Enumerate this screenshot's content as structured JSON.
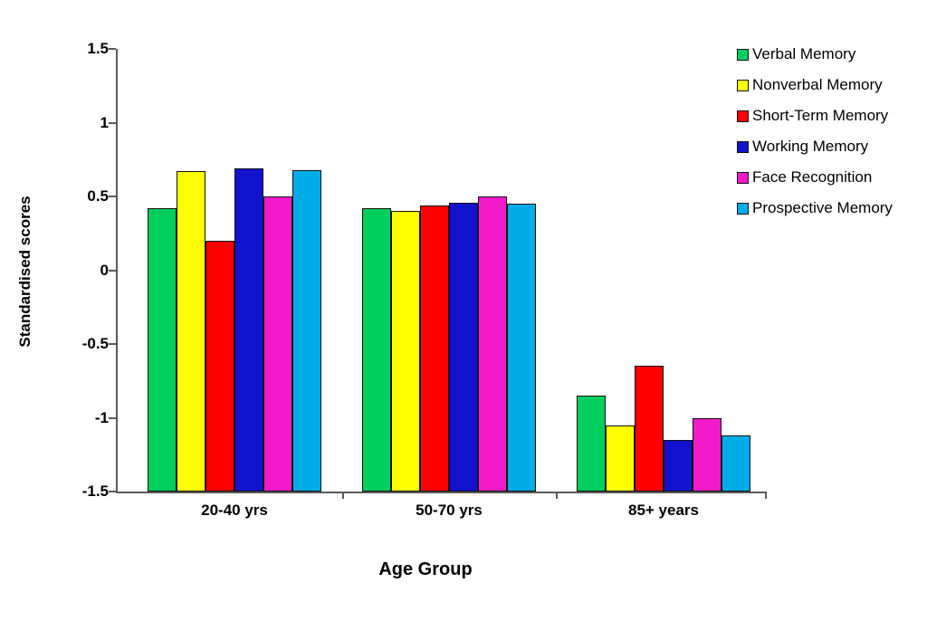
{
  "chart_data": {
    "type": "bar",
    "title": "",
    "xlabel": "Age Group",
    "ylabel": "Standardised scores",
    "categories": [
      "20-40 yrs",
      "50-70 yrs",
      "85+ years"
    ],
    "series": [
      {
        "name": "Verbal Memory",
        "color": "#00CE5D",
        "values": [
          0.42,
          0.42,
          -0.85
        ]
      },
      {
        "name": "Nonverbal Memory",
        "color": "#FFFF00",
        "values": [
          0.67,
          0.4,
          -1.05
        ]
      },
      {
        "name": "Short-Term Memory",
        "color": "#FF0000",
        "values": [
          0.2,
          0.44,
          -0.65
        ]
      },
      {
        "name": "Working Memory",
        "color": "#1313CE",
        "values": [
          0.69,
          0.46,
          -1.15
        ]
      },
      {
        "name": "Face Recognition",
        "color": "#F31BC9",
        "values": [
          0.5,
          0.5,
          -1.0
        ]
      },
      {
        "name": "Prospective Memory",
        "color": "#00ACE8",
        "values": [
          0.68,
          0.45,
          -1.12
        ]
      }
    ],
    "ylim": [
      -1.5,
      1.5
    ],
    "yticks": [
      1.5,
      1,
      0.5,
      0,
      -0.5,
      -1,
      -1.5
    ],
    "ytick_labels": [
      "1.5",
      "1",
      "0.5",
      "0",
      "-0.5",
      "-1",
      "-1.5"
    ],
    "bar_base": -1.5,
    "grid": false,
    "legend_position": "right-top",
    "axis_color": "#5a5a5a"
  }
}
